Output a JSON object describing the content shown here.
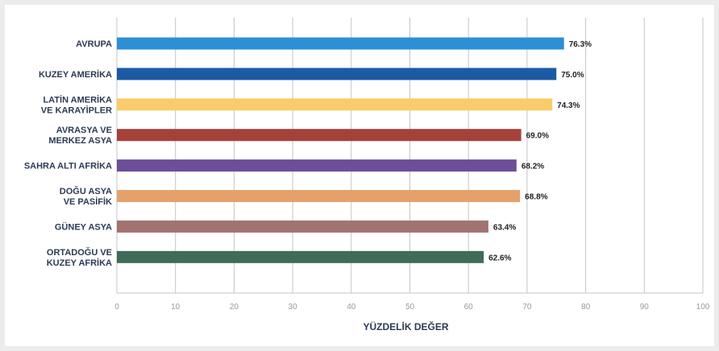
{
  "chart_data": {
    "type": "bar",
    "orientation": "horizontal",
    "title": "",
    "xlabel": "YÜZDELİK DEĞER",
    "ylabel": "",
    "xlim": [
      0,
      100
    ],
    "xticks": [
      0,
      10,
      20,
      30,
      40,
      50,
      60,
      70,
      80,
      90,
      100
    ],
    "grid": true,
    "legend": "none",
    "categories": [
      [
        "AVRUPA"
      ],
      [
        "KUZEY AMERİKA"
      ],
      [
        "LATİN AMERİKA",
        "VE KARAYİPLER"
      ],
      [
        "AVRASYA VE",
        "MERKEZ ASYA"
      ],
      [
        "SAHRA ALTI AFRİKA"
      ],
      [
        "DOĞU ASYA",
        "VE PASİFİK"
      ],
      [
        "GÜNEY ASYA"
      ],
      [
        "ORTADOĞU VE",
        "KUZEY AFRİKA"
      ]
    ],
    "values": [
      76.3,
      75.0,
      74.3,
      69.0,
      68.2,
      68.8,
      63.4,
      62.6
    ],
    "value_labels": [
      "76.3%",
      "75.0%",
      "74.3%",
      "69.0%",
      "68.2%",
      "68.8%",
      "63.4%",
      "62.6%"
    ],
    "colors": [
      "#2e8ed6",
      "#1c5aa6",
      "#f9cb6a",
      "#a5413a",
      "#6c4f98",
      "#e6a06a",
      "#a27370",
      "#3f6b58"
    ]
  }
}
